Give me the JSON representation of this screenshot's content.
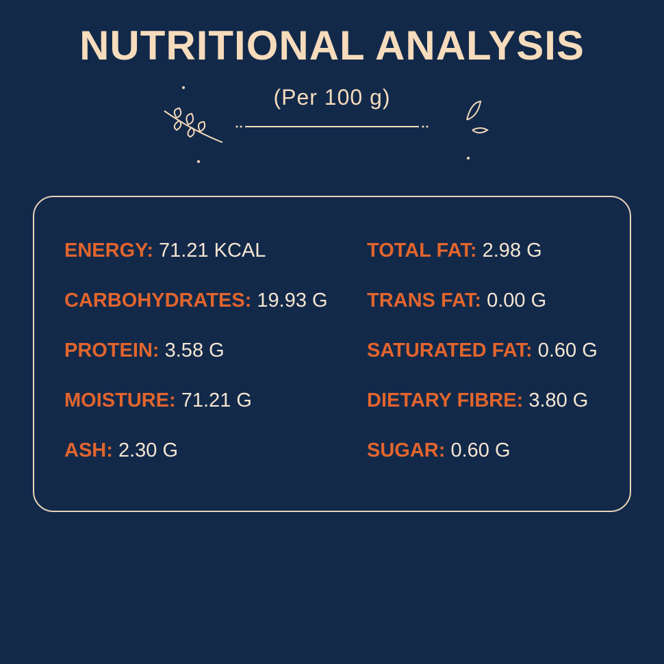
{
  "header": {
    "title": "NUTRITIONAL ANALYSIS",
    "subtitle": "(Per 100 g)"
  },
  "nutrients": {
    "left": [
      {
        "label": "ENERGY:",
        "value": "71.21 KCAL"
      },
      {
        "label": "CARBOHYDRATES:",
        "value": "19.93 G"
      },
      {
        "label": "PROTEIN:",
        "value": "3.58 G"
      },
      {
        "label": "MOISTURE:",
        "value": "71.21 G"
      },
      {
        "label": "ASH:",
        "value": "2.30 G"
      }
    ],
    "right": [
      {
        "label": "TOTAL FAT:",
        "value": "2.98 G"
      },
      {
        "label": "TRANS FAT:",
        "value": "0.00 G"
      },
      {
        "label": "SATURATED FAT:",
        "value": "0.60 G"
      },
      {
        "label": "DIETARY FIBRE:",
        "value": "3.80 G"
      },
      {
        "label": "SUGAR:",
        "value": "0.60 G"
      }
    ]
  }
}
